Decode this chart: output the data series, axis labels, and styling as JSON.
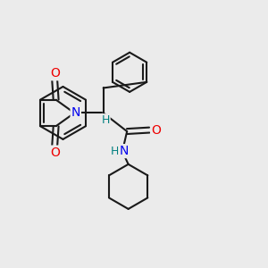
{
  "background_color": "#ebebeb",
  "bond_color": "#1a1a1a",
  "N_color": "#0000ee",
  "O_color": "#ee0000",
  "H_color": "#008080",
  "line_width": 1.5,
  "figsize": [
    3.0,
    3.0
  ],
  "dpi": 100,
  "xlim": [
    0,
    10
  ],
  "ylim": [
    0,
    10
  ]
}
